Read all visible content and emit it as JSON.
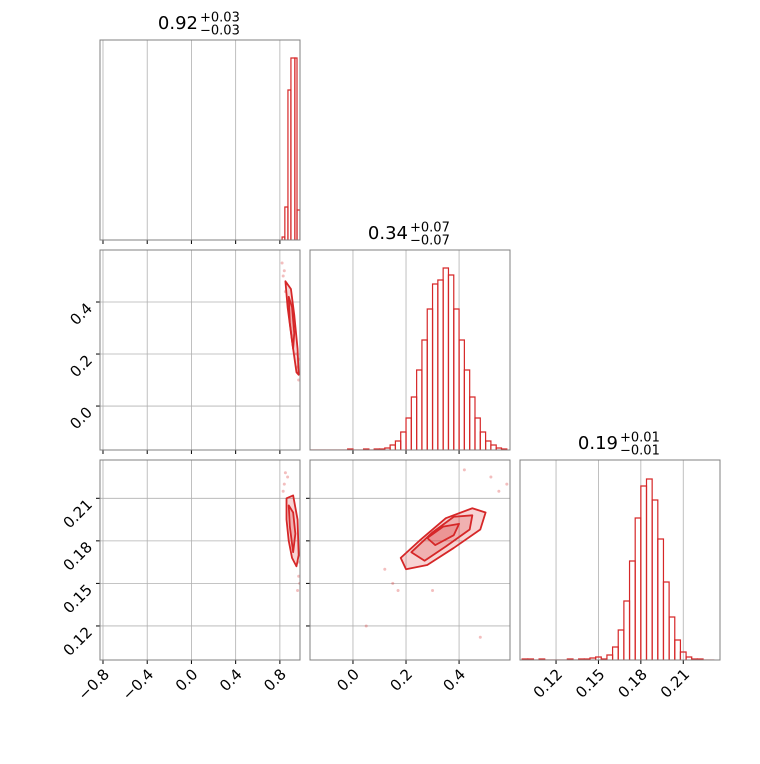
{
  "chart_data": [
    {
      "type": "histogram",
      "color": "#d62728",
      "title": "0.92",
      "title_plus": "+0.03",
      "title_minus": "−0.03",
      "bins": [
        0.82,
        0.845,
        0.873,
        0.9,
        0.936,
        0.955,
        0.982
      ],
      "counts": [
        3,
        33,
        150,
        182,
        182,
        30
      ],
      "xlim": [
        -0.827,
        0.982
      ],
      "ylim": [
        0,
        200
      ],
      "xticks": [
        -0.8,
        -0.4,
        0.0,
        0.4,
        0.8
      ],
      "xticklabels": false,
      "grid": true
    },
    {
      "type": "contour",
      "color": "#d62728",
      "xlim": [
        -0.827,
        0.982
      ],
      "ylim": [
        -0.169,
        0.6
      ],
      "xticks": [
        -0.8,
        -0.4,
        0.0,
        0.4,
        0.8
      ],
      "xticklabels": false,
      "yticks": [
        {
          "value": 0.0,
          "label": "0.0"
        },
        0.2,
        0.4
      ],
      "yticklabels": true,
      "grid": true,
      "contours": [
        {
          "x": [
            0.85,
            0.9,
            0.93,
            0.96,
            0.97,
            0.95,
            0.91,
            0.87
          ],
          "y": [
            0.48,
            0.45,
            0.35,
            0.22,
            0.12,
            0.13,
            0.25,
            0.38
          ]
        },
        {
          "x": [
            0.88,
            0.91,
            0.93,
            0.92,
            0.89
          ],
          "y": [
            0.42,
            0.38,
            0.28,
            0.22,
            0.32
          ]
        }
      ],
      "points": {
        "x": [
          0.82,
          0.84,
          0.83,
          0.96,
          0.97,
          0.98,
          0.86,
          0.95,
          0.85,
          0.97
        ],
        "y": [
          0.55,
          0.52,
          0.5,
          0.15,
          0.1,
          0.13,
          0.47,
          0.2,
          0.44,
          0.18
        ]
      }
    },
    {
      "type": "histogram",
      "color": "#d62728",
      "title": "0.34",
      "title_plus": "+0.07",
      "title_minus": "−0.07",
      "bins": [
        -0.16,
        -0.14,
        -0.12,
        -0.1,
        -0.08,
        -0.06,
        -0.04,
        -0.02,
        0.0,
        0.02,
        0.04,
        0.06,
        0.08,
        0.1,
        0.12,
        0.14,
        0.16,
        0.18,
        0.2,
        0.22,
        0.24,
        0.26,
        0.28,
        0.3,
        0.32,
        0.34,
        0.36,
        0.38,
        0.4,
        0.42,
        0.44,
        0.46,
        0.48,
        0.5,
        0.52,
        0.54,
        0.56,
        0.58
      ],
      "counts": [
        0,
        0,
        0,
        0,
        0,
        0,
        0,
        1,
        0,
        0,
        1,
        0,
        1,
        1,
        2,
        5,
        9,
        18,
        32,
        53,
        80,
        110,
        141,
        166,
        170,
        182,
        175,
        141,
        110,
        80,
        53,
        32,
        18,
        9,
        5,
        2,
        1
      ],
      "xlim": [
        -0.162,
        0.592
      ],
      "ylim": [
        0,
        200
      ],
      "xticks": [
        {
          "value": 0.0,
          "label": "0.0"
        },
        0.2,
        0.4
      ],
      "xticklabels": false,
      "grid": true
    },
    {
      "type": "contour",
      "color": "#d62728",
      "xlim": [
        -0.827,
        0.982
      ],
      "ylim": [
        0.096,
        0.237
      ],
      "xticks": [
        {
          "value": -0.8,
          "label": "−0.8"
        },
        {
          "value": -0.4,
          "label": "−0.4"
        },
        {
          "value": 0.0,
          "label": "0.0"
        },
        0.4,
        0.8
      ],
      "xticklabels": true,
      "yticks": [
        0.12,
        0.15,
        0.18,
        0.21
      ],
      "yticklabels": true,
      "grid": true,
      "contours": [
        {
          "x": [
            0.86,
            0.92,
            0.96,
            0.97,
            0.95,
            0.91,
            0.88,
            0.86
          ],
          "y": [
            0.21,
            0.212,
            0.195,
            0.17,
            0.162,
            0.168,
            0.18,
            0.195
          ]
        },
        {
          "x": [
            0.88,
            0.92,
            0.94,
            0.92,
            0.89
          ],
          "y": [
            0.205,
            0.2,
            0.185,
            0.172,
            0.19
          ]
        }
      ],
      "points": {
        "x": [
          0.84,
          0.85,
          0.87,
          0.97,
          0.98,
          0.96,
          0.83,
          0.97
        ],
        "y": [
          0.22,
          0.228,
          0.225,
          0.155,
          0.15,
          0.145,
          0.215,
          0.165
        ]
      }
    },
    {
      "type": "contour",
      "color": "#d62728",
      "xlim": [
        -0.162,
        0.592
      ],
      "ylim": [
        0.096,
        0.237
      ],
      "xticks": [
        {
          "value": 0.0,
          "label": "0.0"
        },
        0.2,
        0.4
      ],
      "xticklabels": true,
      "yticks": [
        0.12,
        0.15,
        0.18,
        0.21
      ],
      "yticklabels": false,
      "grid": true,
      "contours": [
        {
          "x": [
            0.18,
            0.25,
            0.35,
            0.45,
            0.5,
            0.48,
            0.38,
            0.28,
            0.2
          ],
          "y": [
            0.168,
            0.18,
            0.196,
            0.203,
            0.2,
            0.188,
            0.175,
            0.163,
            0.16
          ]
        },
        {
          "x": [
            0.22,
            0.3,
            0.38,
            0.45,
            0.44,
            0.35,
            0.27
          ],
          "y": [
            0.172,
            0.186,
            0.197,
            0.198,
            0.188,
            0.176,
            0.166
          ]
        },
        {
          "x": [
            0.28,
            0.34,
            0.4,
            0.38,
            0.31
          ],
          "y": [
            0.182,
            0.19,
            0.192,
            0.184,
            0.177
          ]
        }
      ],
      "points": {
        "x": [
          0.12,
          0.15,
          0.05,
          0.55,
          0.58,
          0.52,
          0.3,
          0.42,
          0.17,
          0.48
        ],
        "y": [
          0.16,
          0.15,
          0.12,
          0.215,
          0.22,
          0.225,
          0.145,
          0.23,
          0.145,
          0.112
        ]
      }
    },
    {
      "type": "histogram",
      "color": "#d62728",
      "title": "0.19",
      "title_plus": "+0.01",
      "title_minus": "−0.01",
      "bins": [
        0.096,
        0.1,
        0.104,
        0.108,
        0.112,
        0.116,
        0.12,
        0.124,
        0.128,
        0.132,
        0.136,
        0.14,
        0.144,
        0.148,
        0.152,
        0.156,
        0.16,
        0.164,
        0.168,
        0.172,
        0.176,
        0.18,
        0.184,
        0.188,
        0.192,
        0.196,
        0.2,
        0.204,
        0.208,
        0.212,
        0.216,
        0.22,
        0.224,
        0.228,
        0.232
      ],
      "counts": [
        1,
        1,
        0,
        1,
        0,
        0,
        0,
        0,
        1,
        0,
        1,
        1,
        2,
        3,
        1,
        5,
        13,
        30,
        59,
        99,
        142,
        174,
        181,
        160,
        121,
        78,
        43,
        20,
        8,
        3,
        1,
        1,
        0,
        0
      ],
      "xlim": [
        0.0945,
        0.236
      ],
      "ylim": [
        0,
        200
      ],
      "xticks": [
        0.12,
        0.15,
        0.18,
        0.21
      ],
      "xticklabels": true,
      "grid": true
    }
  ]
}
